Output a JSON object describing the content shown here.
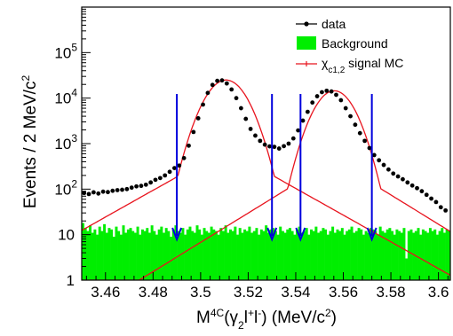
{
  "chart_data": {
    "type": "scatter",
    "ylog": true,
    "xlim": [
      3.45,
      3.605
    ],
    "ylim": [
      1,
      1000000
    ],
    "x_ticks": [
      "3.46",
      "3.48",
      "3.5",
      "3.52",
      "3.54",
      "3.56",
      "3.58",
      "3.6"
    ],
    "x_tick_values": [
      3.46,
      3.48,
      3.5,
      3.52,
      3.54,
      3.56,
      3.58,
      3.6
    ],
    "y_ticks": [
      {
        "value": 1,
        "base": "1",
        "exp": ""
      },
      {
        "value": 10,
        "base": "10",
        "exp": ""
      },
      {
        "value": 100,
        "base": "10",
        "exp": "2"
      },
      {
        "value": 1000,
        "base": "10",
        "exp": "3"
      },
      {
        "value": 10000,
        "base": "10",
        "exp": "4"
      },
      {
        "value": 100000,
        "base": "10",
        "exp": "5"
      }
    ],
    "xlabel": {
      "prefix": "M",
      "sup1": "4C",
      "open": "(γ",
      "sub1": "2",
      "l1": "l",
      "sup2": "+",
      "l2": "l",
      "sup3": "-",
      "close": ") (MeV/c",
      "sup4": "2",
      "end": ")"
    },
    "ylabel": {
      "main": "Events / 2 MeV/c",
      "sup": "2"
    },
    "legend": {
      "data": "data",
      "background": "Background",
      "signal_prefix": "χ",
      "signal_sub": "c1,2",
      "signal_suffix": " signal MC"
    },
    "colors": {
      "data": "#000000",
      "background": "#00ee00",
      "signal": "#e8141e",
      "arrows": "#0000dd"
    },
    "cut_arrows_x": [
      3.49,
      3.53,
      3.542,
      3.572
    ],
    "data_series": {
      "name": "data",
      "x": [
        3.451,
        3.453,
        3.455,
        3.457,
        3.459,
        3.461,
        3.463,
        3.465,
        3.467,
        3.469,
        3.471,
        3.473,
        3.475,
        3.477,
        3.479,
        3.481,
        3.483,
        3.485,
        3.487,
        3.489,
        3.491,
        3.493,
        3.495,
        3.497,
        3.499,
        3.501,
        3.503,
        3.505,
        3.507,
        3.509,
        3.511,
        3.513,
        3.515,
        3.517,
        3.519,
        3.521,
        3.523,
        3.525,
        3.527,
        3.529,
        3.531,
        3.533,
        3.535,
        3.537,
        3.539,
        3.541,
        3.543,
        3.545,
        3.547,
        3.549,
        3.551,
        3.553,
        3.555,
        3.557,
        3.559,
        3.561,
        3.563,
        3.565,
        3.567,
        3.569,
        3.571,
        3.573,
        3.575,
        3.577,
        3.579,
        3.581,
        3.583,
        3.585,
        3.587,
        3.589,
        3.591,
        3.593,
        3.595,
        3.597,
        3.599,
        3.601,
        3.603
      ],
      "y": [
        82,
        78,
        85,
        80,
        88,
        86,
        92,
        95,
        97,
        100,
        108,
        115,
        118,
        125,
        140,
        160,
        175,
        200,
        240,
        290,
        330,
        480,
        900,
        1800,
        3600,
        7200,
        13000,
        19500,
        24000,
        24500,
        21000,
        15500,
        10000,
        6000,
        3500,
        2100,
        1500,
        1150,
        950,
        870,
        850,
        780,
        880,
        1000,
        1300,
        1950,
        3200,
        5000,
        8000,
        11000,
        13500,
        14500,
        14000,
        11800,
        9000,
        6000,
        4000,
        2600,
        1700,
        1150,
        800,
        560,
        430,
        340,
        270,
        220,
        190,
        165,
        140,
        120,
        105,
        90,
        75,
        62,
        52,
        40,
        34
      ]
    },
    "signal_mc": {
      "name": "χc1,2 signal MC",
      "peaks": [
        {
          "mean": 3.5107,
          "amplitude": 25000,
          "core_width": 0.0065,
          "tail_width": 0.0148
        },
        {
          "mean": 3.5562,
          "amplitude": 14500,
          "core_width": 0.0062,
          "tail_width": 0.0135
        }
      ]
    },
    "background": {
      "name": "Background",
      "x_start": 3.45,
      "bin_width": 0.001,
      "values": [
        18,
        14,
        12,
        16,
        11,
        13,
        10,
        15,
        12,
        17,
        11,
        14,
        13,
        9,
        15,
        12,
        10,
        16,
        11,
        13,
        14,
        12,
        11,
        15,
        10,
        13,
        12,
        14,
        11,
        16,
        12,
        10,
        13,
        15,
        11,
        14,
        12,
        9,
        13,
        16,
        12,
        11,
        14,
        10,
        13,
        15,
        12,
        11,
        16,
        13,
        10,
        14,
        12,
        11,
        15,
        13,
        12,
        10,
        14,
        12,
        16,
        11,
        13,
        12,
        15,
        10,
        14,
        11,
        13,
        12,
        15,
        11,
        12,
        14,
        10,
        13,
        12,
        16,
        11,
        13,
        14,
        12,
        10,
        15,
        12,
        11,
        13,
        14,
        12,
        10,
        13,
        15,
        11,
        12,
        14,
        10,
        13,
        12,
        15,
        11,
        12,
        14,
        13,
        10,
        12,
        15,
        11,
        13,
        12,
        14,
        10,
        12,
        13,
        15,
        11,
        12,
        14,
        13,
        10,
        12,
        11,
        14,
        13,
        12,
        10,
        15,
        12,
        11,
        13,
        14,
        12,
        10,
        13,
        12,
        11,
        14,
        3,
        12,
        13,
        11,
        12,
        14,
        10,
        13,
        12,
        11,
        14,
        12,
        13,
        10,
        12,
        14,
        11,
        13,
        12,
        10,
        12,
        11,
        13,
        12
      ]
    }
  }
}
